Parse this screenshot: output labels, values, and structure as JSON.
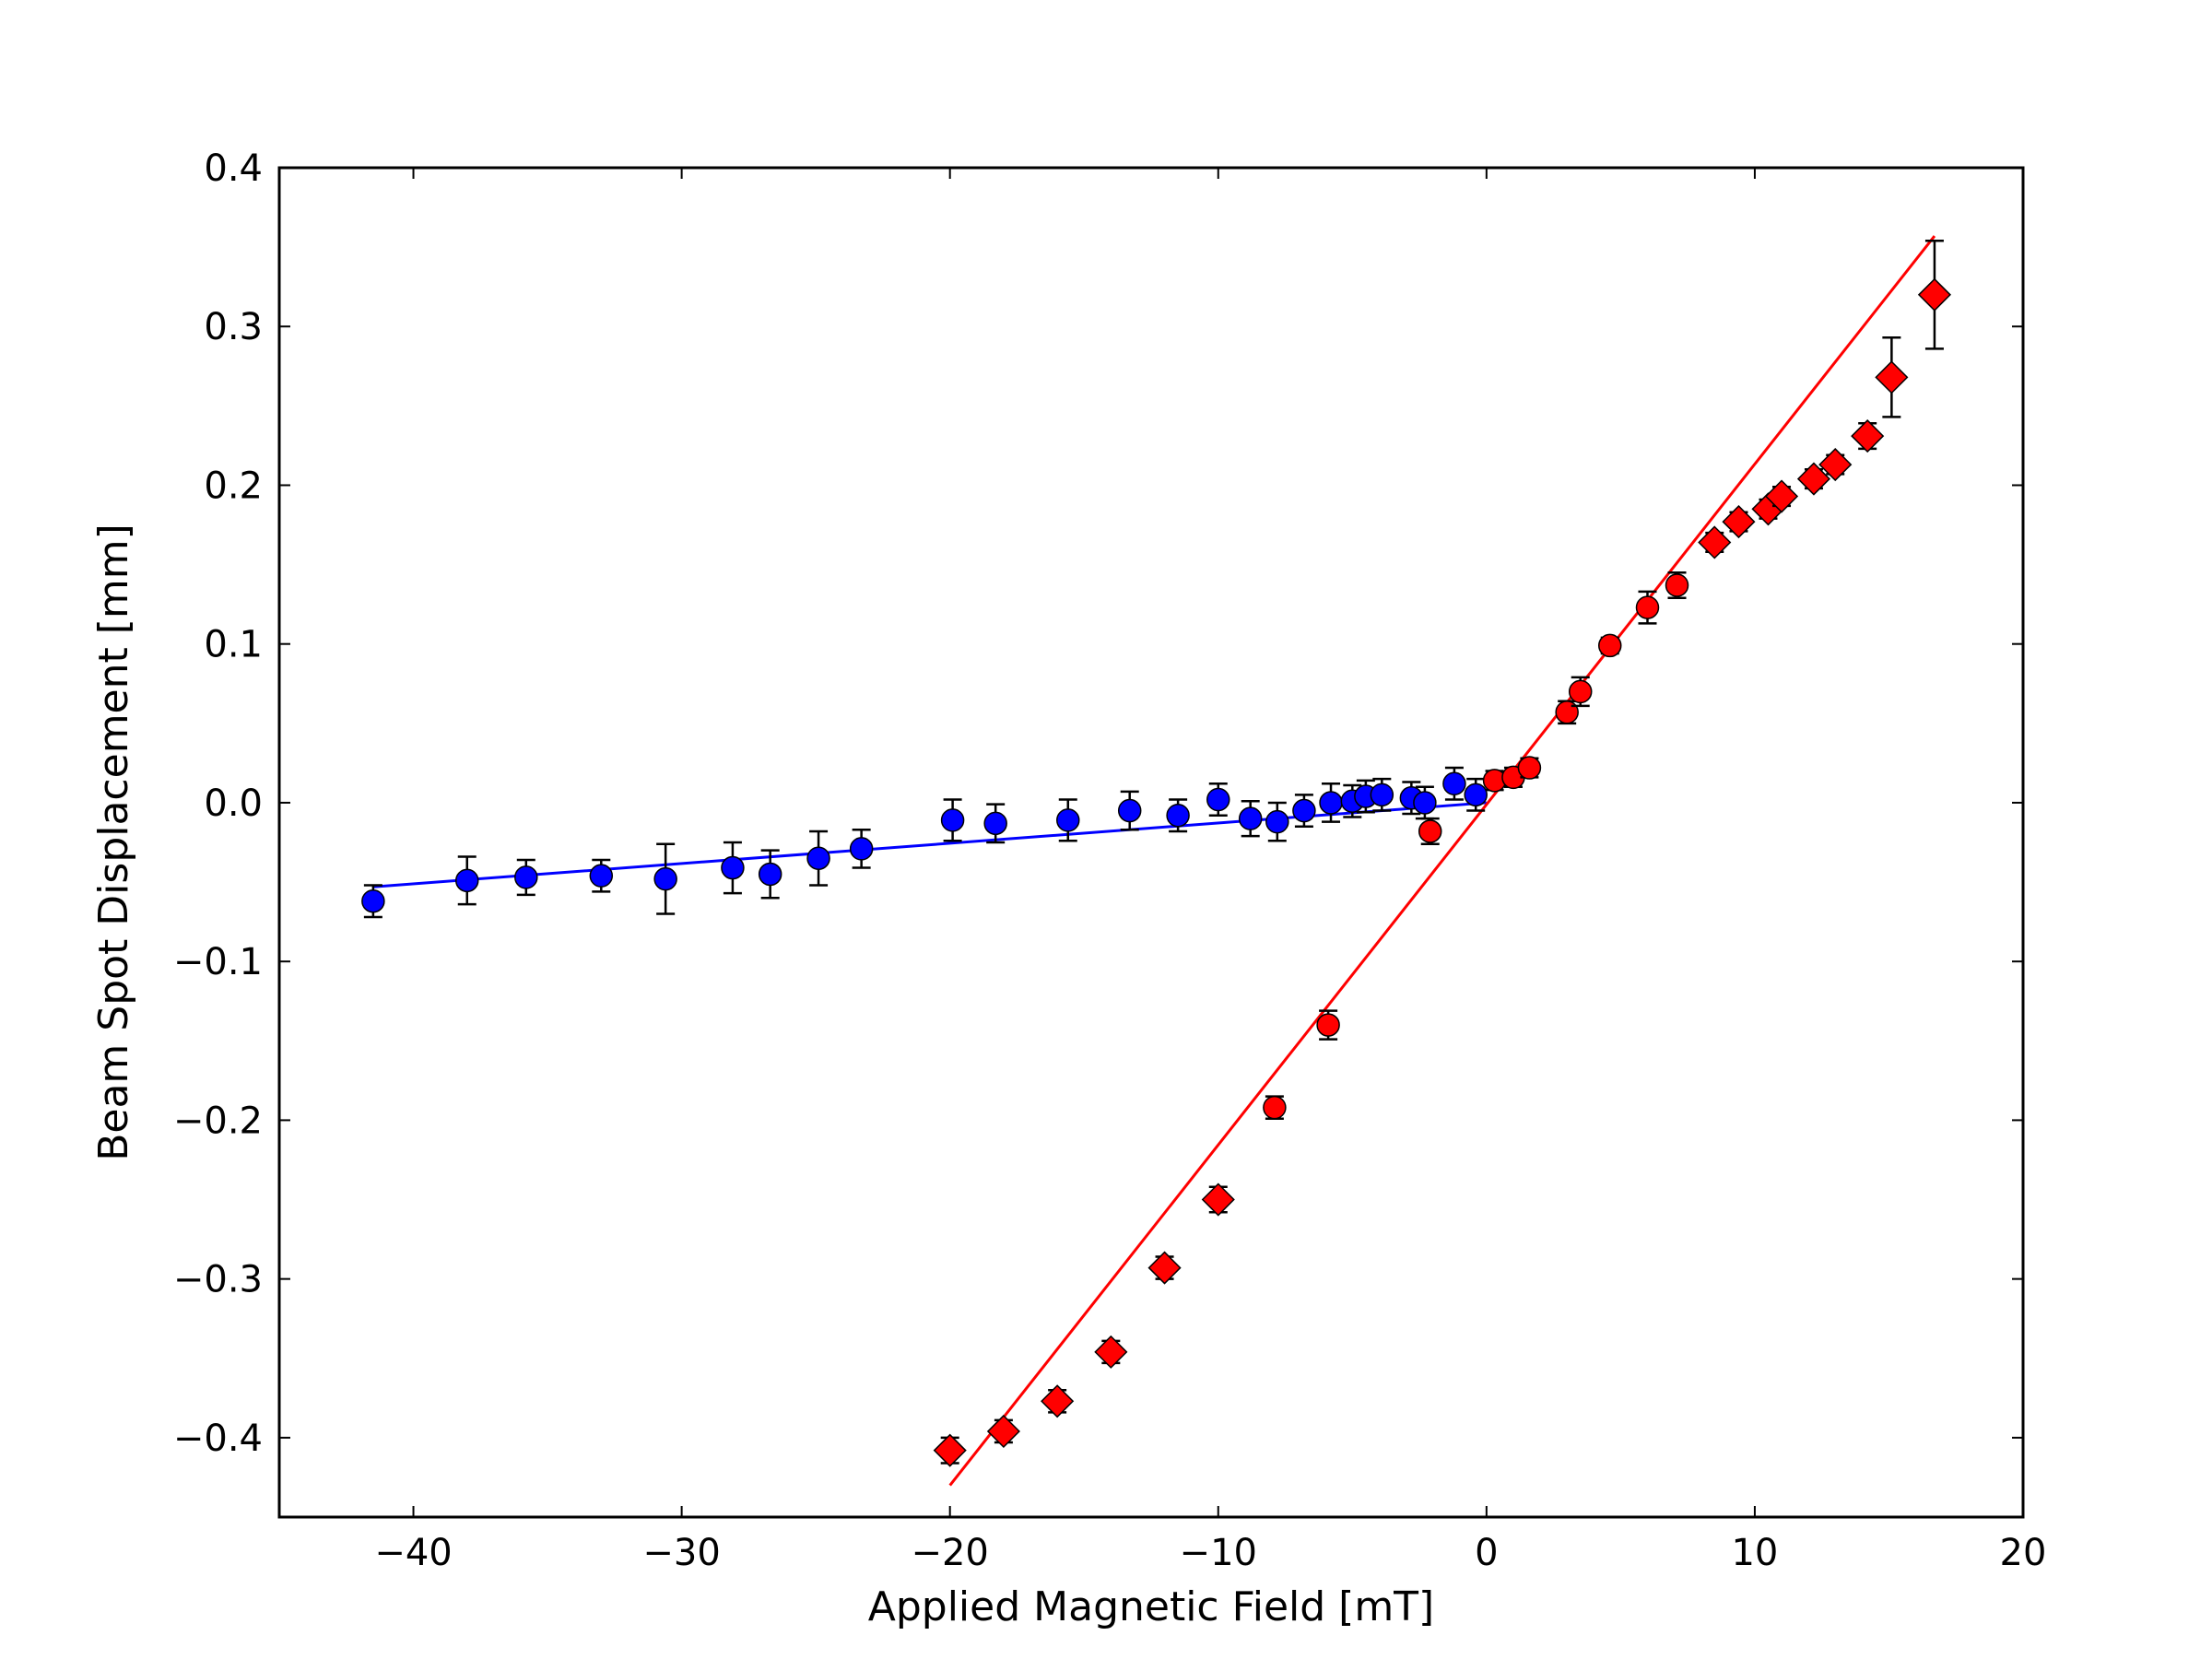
{
  "chart_data": {
    "type": "scatter",
    "title": "",
    "xlabel": "Applied Magnetic Field [mT]",
    "ylabel": "Beam Spot Displacement [mm]",
    "xlim": [
      -45,
      20
    ],
    "ylim": [
      -0.45,
      0.4
    ],
    "xticks": [
      -40,
      -30,
      -20,
      -10,
      0,
      10,
      20
    ],
    "xtick_labels": [
      "−40",
      "−30",
      "−20",
      "−10",
      "0",
      "10",
      "20"
    ],
    "yticks": [
      -0.4,
      -0.3,
      -0.2,
      -0.1,
      0.0,
      0.1,
      0.2,
      0.3,
      0.4
    ],
    "ytick_labels": [
      "−0.4",
      "−0.3",
      "−0.2",
      "−0.1",
      "0.0",
      "0.1",
      "0.2",
      "0.3",
      "0.4"
    ],
    "grid": false,
    "legend": "none",
    "series": [
      {
        "marker": "circle",
        "color": "#0000ff",
        "points": [
          {
            "x": -41.5,
            "y": -0.062,
            "err": 0.01
          },
          {
            "x": -38.0,
            "y": -0.049,
            "err": 0.015
          },
          {
            "x": -35.8,
            "y": -0.047,
            "err": 0.011
          },
          {
            "x": -33.0,
            "y": -0.046,
            "err": 0.01
          },
          {
            "x": -30.6,
            "y": -0.048,
            "err": 0.022
          },
          {
            "x": -28.1,
            "y": -0.041,
            "err": 0.016
          },
          {
            "x": -26.7,
            "y": -0.045,
            "err": 0.015
          },
          {
            "x": -24.9,
            "y": -0.035,
            "err": 0.017
          },
          {
            "x": -23.3,
            "y": -0.029,
            "err": 0.012
          },
          {
            "x": -19.9,
            "y": -0.011,
            "err": 0.013
          },
          {
            "x": -18.3,
            "y": -0.013,
            "err": 0.012
          },
          {
            "x": -15.6,
            "y": -0.011,
            "err": 0.013
          },
          {
            "x": -13.3,
            "y": -0.005,
            "err": 0.012
          },
          {
            "x": -11.5,
            "y": -0.008,
            "err": 0.01
          },
          {
            "x": -10.0,
            "y": 0.002,
            "err": 0.01
          },
          {
            "x": -8.8,
            "y": -0.01,
            "err": 0.011
          },
          {
            "x": -7.8,
            "y": -0.012,
            "err": 0.012
          },
          {
            "x": -6.8,
            "y": -0.005,
            "err": 0.01
          },
          {
            "x": -5.8,
            "y": 0.0,
            "err": 0.012
          },
          {
            "x": -5.0,
            "y": 0.001,
            "err": 0.01
          },
          {
            "x": -4.5,
            "y": 0.004,
            "err": 0.01
          },
          {
            "x": -3.9,
            "y": 0.005,
            "err": 0.01
          },
          {
            "x": -2.8,
            "y": 0.003,
            "err": 0.01
          },
          {
            "x": -2.3,
            "y": 0.0,
            "err": 0.01
          },
          {
            "x": -1.2,
            "y": 0.012,
            "err": 0.01
          },
          {
            "x": -0.4,
            "y": 0.005,
            "err": 0.01
          }
        ],
        "fit": {
          "x": [
            -41.5,
            0
          ],
          "y": [
            -0.053,
            0.0
          ]
        }
      },
      {
        "marker": "circle",
        "color": "#ff0000",
        "points": [
          {
            "x": -2.1,
            "y": -0.018,
            "err": 0.008
          },
          {
            "x": 0.3,
            "y": 0.014,
            "err": 0.006
          },
          {
            "x": 1.0,
            "y": 0.016,
            "err": 0.006
          },
          {
            "x": 1.6,
            "y": 0.022,
            "err": 0.006
          },
          {
            "x": 3.0,
            "y": 0.057,
            "err": 0.007
          },
          {
            "x": 3.5,
            "y": 0.07,
            "err": 0.009
          },
          {
            "x": 4.6,
            "y": 0.099,
            "err": 0.005
          },
          {
            "x": 6.0,
            "y": 0.123,
            "err": 0.01
          },
          {
            "x": 7.1,
            "y": 0.137,
            "err": 0.008
          },
          {
            "x": -5.9,
            "y": -0.14,
            "err": 0.009
          },
          {
            "x": -7.9,
            "y": -0.192,
            "err": 0.007
          }
        ]
      },
      {
        "marker": "diamond",
        "color": "#ff0000",
        "points": [
          {
            "x": -20.0,
            "y": -0.408,
            "err": 0.008
          },
          {
            "x": -18.0,
            "y": -0.396,
            "err": 0.007
          },
          {
            "x": -16.0,
            "y": -0.377,
            "err": 0.007
          },
          {
            "x": -14.0,
            "y": -0.346,
            "err": 0.007
          },
          {
            "x": -12.0,
            "y": -0.293,
            "err": 0.007
          },
          {
            "x": -10.0,
            "y": -0.25,
            "err": 0.008
          },
          {
            "x": 8.5,
            "y": 0.164,
            "err": 0.006
          },
          {
            "x": 9.4,
            "y": 0.177,
            "err": 0.006
          },
          {
            "x": 10.5,
            "y": 0.185,
            "err": 0.006
          },
          {
            "x": 11.0,
            "y": 0.193,
            "err": 0.006
          },
          {
            "x": 12.2,
            "y": 0.204,
            "err": 0.006
          },
          {
            "x": 13.0,
            "y": 0.213,
            "err": 0.006
          },
          {
            "x": 14.2,
            "y": 0.231,
            "err": 0.008
          },
          {
            "x": 15.1,
            "y": 0.268,
            "err": 0.025
          },
          {
            "x": 16.7,
            "y": 0.32,
            "err": 0.034
          }
        ],
        "fit": {
          "x": [
            -20.0,
            16.7
          ],
          "y": [
            -0.43,
            0.357
          ]
        }
      }
    ]
  }
}
